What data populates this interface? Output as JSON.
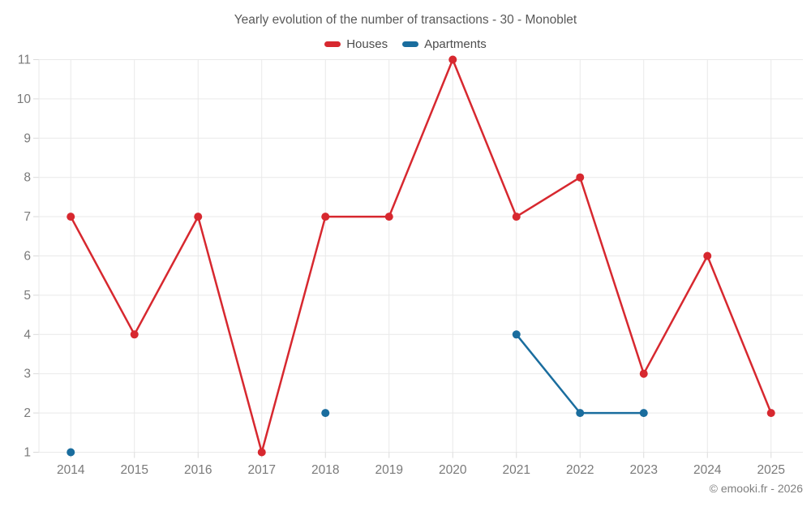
{
  "footer": "© emooki.fr - 2026",
  "colors": {
    "houses": "#d7282f",
    "apartments": "#1a6d9e",
    "grid": "#e9e9e9",
    "tick": "#dadada",
    "axis_label": "#7a7a7a",
    "title": "#595959",
    "legend_text": "#4c4c4c",
    "footer_text": "#808080"
  },
  "chart_data": {
    "type": "line",
    "title": "Yearly evolution of the number of transactions - 30 - Monoblet",
    "categories": [
      "2014",
      "2015",
      "2016",
      "2017",
      "2018",
      "2019",
      "2020",
      "2021",
      "2022",
      "2023",
      "2024",
      "2025"
    ],
    "series": [
      {
        "name": "Houses",
        "color": "#d7282f",
        "values": [
          7,
          4,
          7,
          1,
          7,
          7,
          11,
          7,
          8,
          3,
          6,
          2
        ]
      },
      {
        "name": "Apartments",
        "color": "#1a6d9e",
        "values": [
          1,
          null,
          null,
          null,
          2,
          null,
          null,
          4,
          2,
          2,
          null,
          null
        ]
      }
    ],
    "ylim": [
      1,
      11
    ],
    "yticks": [
      1,
      2,
      3,
      4,
      5,
      6,
      7,
      8,
      9,
      10,
      11
    ],
    "grid": true,
    "legend_position": "top",
    "point_radius": 5,
    "line_width": 2.5
  }
}
